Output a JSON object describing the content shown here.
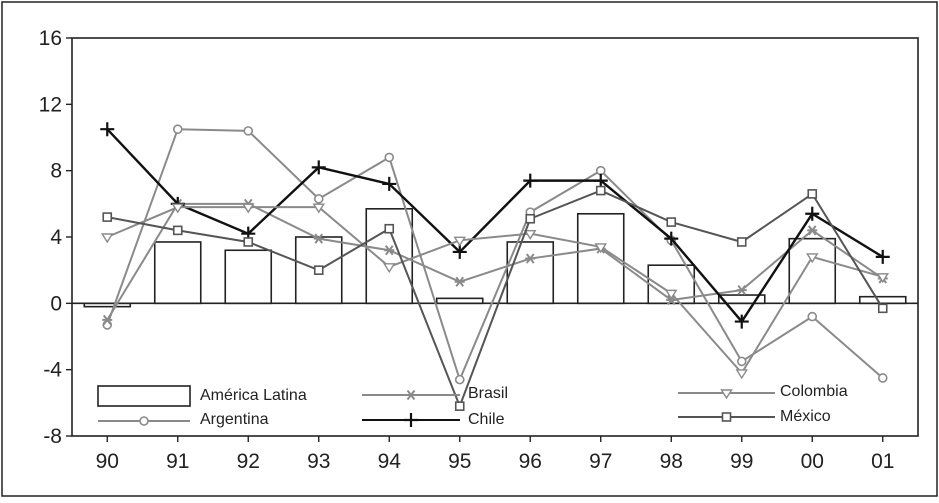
{
  "chart_data": {
    "type": "bar",
    "categories": [
      "90",
      "91",
      "92",
      "93",
      "94",
      "95",
      "96",
      "97",
      "98",
      "99",
      "00",
      "01"
    ],
    "ylim": [
      -8,
      16
    ],
    "yticks": [
      "16",
      "12",
      "8",
      "4",
      "0",
      "-4",
      "-8"
    ],
    "ytick_values": [
      16,
      12,
      8,
      4,
      0,
      -4,
      -8
    ],
    "grid": false,
    "legend_position": "bottom",
    "series": [
      {
        "name": "América Latina",
        "kind": "bar",
        "values": [
          -0.2,
          3.7,
          3.2,
          4.0,
          5.7,
          0.3,
          3.7,
          5.4,
          2.3,
          0.5,
          3.9,
          0.4
        ]
      },
      {
        "name": "Argentina",
        "kind": "line",
        "marker": "circle",
        "color": "#8a8a8a",
        "values": [
          -1.3,
          10.5,
          10.4,
          6.3,
          8.8,
          -4.6,
          5.5,
          8.0,
          3.8,
          -3.5,
          -0.8,
          -4.5
        ]
      },
      {
        "name": "Brasil",
        "kind": "line",
        "marker": "star",
        "color": "#8a8a8a",
        "values": [
          -1.0,
          6.0,
          6.0,
          3.9,
          3.2,
          1.3,
          2.7,
          3.3,
          0.2,
          0.8,
          4.4,
          1.5
        ]
      },
      {
        "name": "Chile",
        "kind": "line",
        "marker": "plus",
        "color": "#111111",
        "values": [
          10.5,
          6.0,
          4.2,
          8.2,
          7.2,
          3.1,
          7.4,
          7.4,
          3.9,
          -1.1,
          5.4,
          2.8
        ]
      },
      {
        "name": "Colombia",
        "kind": "line",
        "marker": "triangle",
        "color": "#8a8a8a",
        "values": [
          4.0,
          5.8,
          5.8,
          5.8,
          2.2,
          3.8,
          4.2,
          3.4,
          0.6,
          -4.2,
          2.8,
          1.6
        ]
      },
      {
        "name": "México",
        "kind": "line",
        "marker": "square",
        "color": "#555555",
        "values": [
          5.2,
          4.4,
          3.7,
          2.0,
          4.5,
          -6.2,
          5.1,
          6.8,
          4.9,
          3.7,
          6.6,
          -0.3
        ]
      }
    ]
  }
}
